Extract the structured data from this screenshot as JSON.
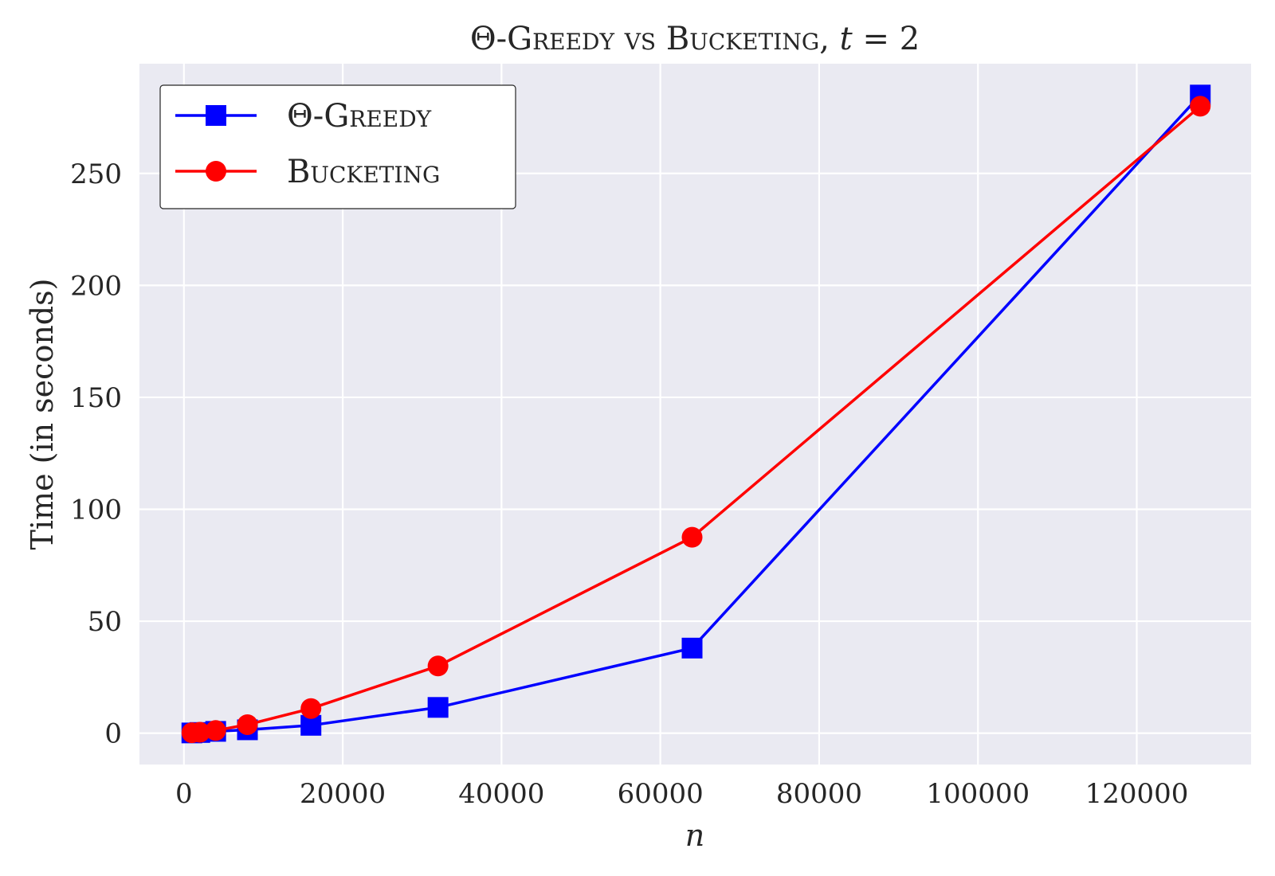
{
  "chart_data": {
    "type": "line",
    "title": {
      "prefix": "Θ-",
      "sc1": "Greedy",
      "vs": " vs ",
      "sc2": "Bucketing",
      "suffix": ", ",
      "var": "t",
      "eq": " = 2"
    },
    "xlabel": "n",
    "ylabel": "Time (in seconds)",
    "xlim": [
      -5600,
      134400
    ],
    "ylim": [
      -14,
      299
    ],
    "xticks": [
      0,
      20000,
      40000,
      60000,
      80000,
      100000,
      120000
    ],
    "yticks": [
      0,
      50,
      100,
      150,
      200,
      250
    ],
    "grid": true,
    "legend_position": "upper-left",
    "series": [
      {
        "name_prefix": "Θ-",
        "name": "Greedy",
        "color": "#0000ff",
        "marker": "square",
        "x": [
          1000,
          2000,
          4000,
          8000,
          16000,
          32000,
          64000,
          128000
        ],
        "y": [
          0.1,
          0.3,
          0.8,
          1.5,
          3.5,
          11.5,
          38,
          285
        ]
      },
      {
        "name_prefix": "",
        "name": "Bucketing",
        "color": "#ff0000",
        "marker": "circle",
        "x": [
          1000,
          2000,
          4000,
          8000,
          16000,
          32000,
          64000,
          128000
        ],
        "y": [
          0.2,
          0.4,
          1.2,
          3.8,
          11,
          30,
          87.5,
          280
        ]
      }
    ]
  },
  "colors": {
    "plot_background": "#eaeaf2",
    "grid": "#ffffff"
  }
}
